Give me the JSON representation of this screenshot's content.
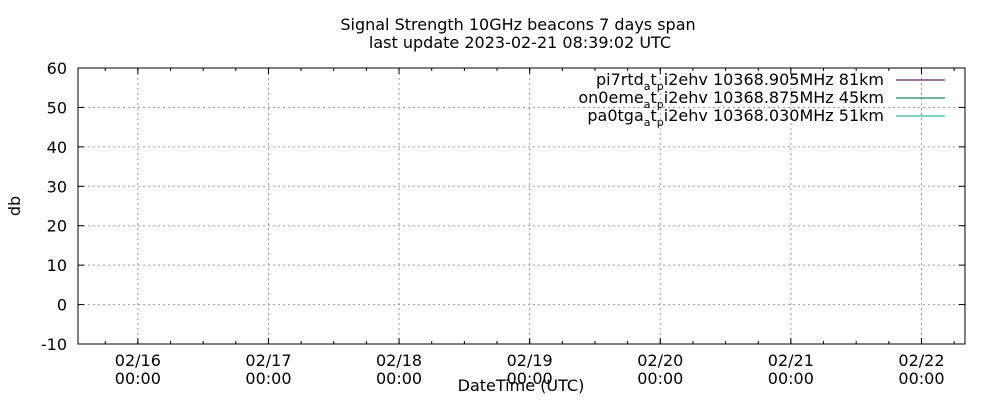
{
  "chart_data": {
    "type": "line",
    "title": "Signal Strength 10GHz beacons 7 days span",
    "subtitle": "last update 2023-02-21 08:39:02 UTC",
    "xlabel": "DateTime (UTC)",
    "ylabel": "db",
    "ylim": [
      -10,
      60
    ],
    "yticks": [
      -10,
      0,
      10,
      20,
      30,
      40,
      50,
      60
    ],
    "xlim": [
      "2023-02-15 13:00",
      "2023-02-22 08:00"
    ],
    "xticks": [
      {
        "t": "2023-02-16 00:00",
        "date": "02/16",
        "time": "00:00"
      },
      {
        "t": "2023-02-17 00:00",
        "date": "02/17",
        "time": "00:00"
      },
      {
        "t": "2023-02-18 00:00",
        "date": "02/18",
        "time": "00:00"
      },
      {
        "t": "2023-02-19 00:00",
        "date": "02/19",
        "time": "00:00"
      },
      {
        "t": "2023-02-20 00:00",
        "date": "02/20",
        "time": "00:00"
      },
      {
        "t": "2023-02-21 00:00",
        "date": "02/21",
        "time": "00:00"
      },
      {
        "t": "2023-02-22 00:00",
        "date": "02/22",
        "time": "00:00"
      }
    ],
    "grid": true,
    "legend_position": "top-right",
    "series": [
      {
        "name": "pi7rtd_at_pi2ehv 10368.905MHz 81km",
        "legend_parts": [
          {
            "text": "pi7rtd",
            "sub": false
          },
          {
            "text": "a",
            "sub": true
          },
          {
            "text": "t",
            "sub": false
          },
          {
            "text": "p",
            "sub": true
          },
          {
            "text": "i2ehv 10368.905MHz 81km",
            "sub": false
          }
        ],
        "color": "#6a1b7a",
        "values": []
      },
      {
        "name": "on0eme_at_pi2ehv 10368.875MHz 45km",
        "legend_parts": [
          {
            "text": "on0eme",
            "sub": false
          },
          {
            "text": "a",
            "sub": true
          },
          {
            "text": "t",
            "sub": false
          },
          {
            "text": "p",
            "sub": true
          },
          {
            "text": "i2ehv 10368.875MHz 45km",
            "sub": false
          }
        ],
        "color": "#1a8a62",
        "values": []
      },
      {
        "name": "pa0tga_at_pi2ehv 10368.030MHz 51km",
        "legend_parts": [
          {
            "text": "pa0tga",
            "sub": false
          },
          {
            "text": "a",
            "sub": true
          },
          {
            "text": "t",
            "sub": false
          },
          {
            "text": "p",
            "sub": true
          },
          {
            "text": "i2ehv 10368.030MHz 51km",
            "sub": false
          }
        ],
        "color": "#3fb8a8",
        "values": []
      }
    ]
  }
}
